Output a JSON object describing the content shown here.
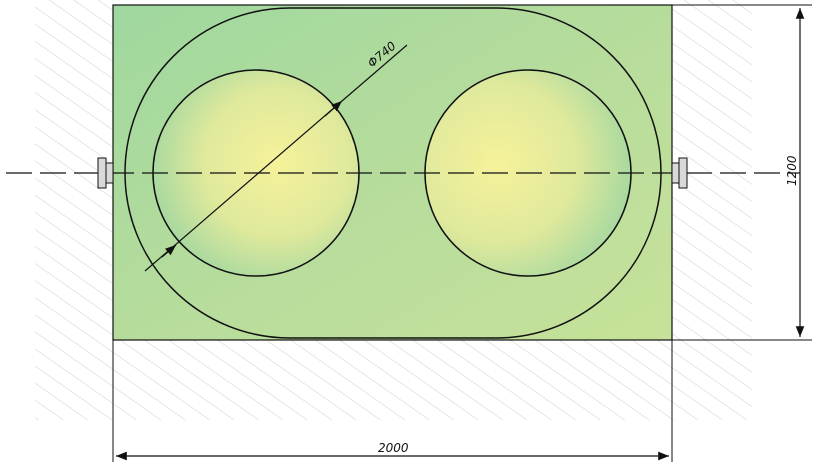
{
  "drawing": {
    "dimensions": {
      "width": "2000",
      "height": "1200",
      "diameter": "Φ740"
    },
    "colors": {
      "fill_green": "#a9d99a",
      "fill_yellow": "#f2f29a",
      "stroke": "#111111",
      "hatch": "#c8c8c8",
      "pin": "#d9d9d9"
    }
  }
}
